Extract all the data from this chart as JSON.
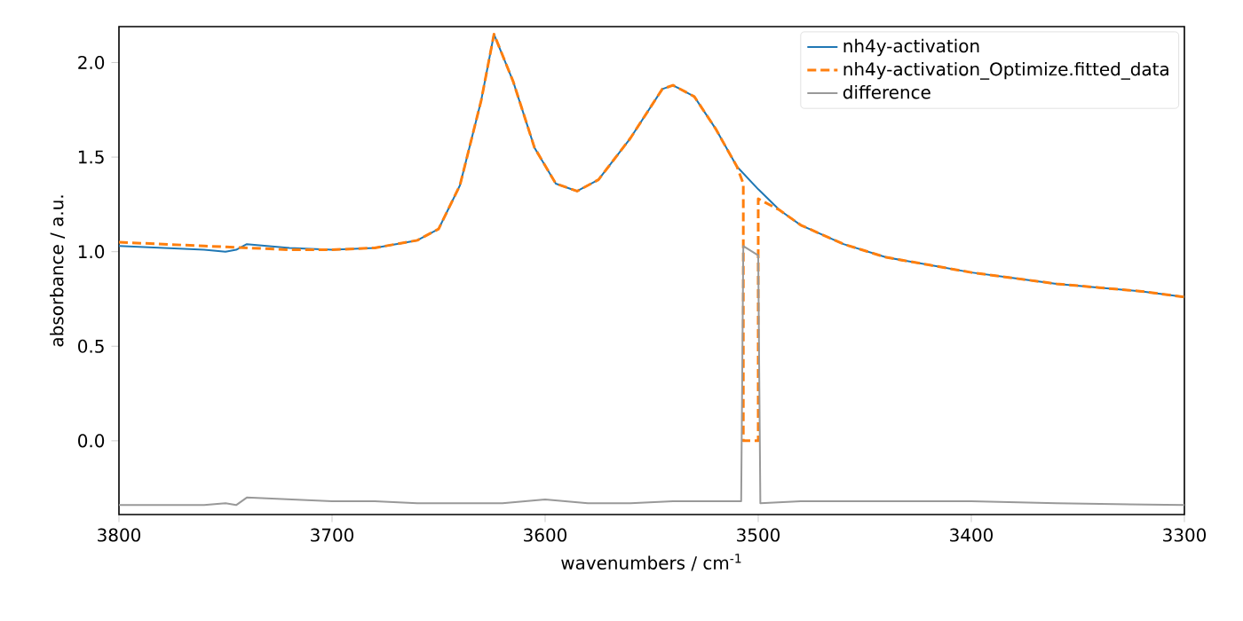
{
  "chart_data": {
    "type": "line",
    "xlabel": "wavenumbers / cm$^{-1}$",
    "ylabel": "absorbance / a.u.",
    "xlim": [
      3800,
      3300
    ],
    "ylim": [
      -0.39,
      2.19
    ],
    "xticks": [
      3800,
      3700,
      3600,
      3500,
      3400,
      3300
    ],
    "yticks": [
      {
        "value": 0,
        "label": "0.0"
      },
      {
        "value": 0.5,
        "label": "0.5"
      },
      {
        "value": 1,
        "label": "1.0"
      },
      {
        "value": 1.5,
        "label": "1.5"
      },
      {
        "value": 2,
        "label": "2.0"
      }
    ],
    "legend": "top right",
    "grid": false,
    "series": [
      {
        "name": "nh4y-activation",
        "color": "#1f77b4",
        "line_style": "solid",
        "x": [
          3800,
          3780,
          3760,
          3750,
          3745,
          3740,
          3720,
          3700,
          3680,
          3660,
          3650,
          3640,
          3630,
          3624,
          3615,
          3605,
          3595,
          3585,
          3575,
          3560,
          3545,
          3540,
          3530,
          3520,
          3510,
          3500,
          3490,
          3480,
          3460,
          3440,
          3420,
          3400,
          3380,
          3360,
          3340,
          3320,
          3300
        ],
        "values": [
          1.03,
          1.02,
          1.01,
          1.0,
          1.01,
          1.04,
          1.02,
          1.01,
          1.02,
          1.06,
          1.12,
          1.35,
          1.8,
          2.15,
          1.9,
          1.55,
          1.36,
          1.32,
          1.38,
          1.6,
          1.86,
          1.88,
          1.82,
          1.65,
          1.45,
          1.33,
          1.22,
          1.14,
          1.04,
          0.97,
          0.93,
          0.89,
          0.86,
          0.83,
          0.81,
          0.79,
          0.76
        ]
      },
      {
        "name": "nh4y-activation_Optimize.fitted_data",
        "color": "#ff7f0e",
        "line_style": "dashed",
        "x": [
          3800,
          3760,
          3720,
          3700,
          3680,
          3660,
          3650,
          3640,
          3630,
          3624,
          3615,
          3605,
          3595,
          3585,
          3575,
          3560,
          3545,
          3540,
          3530,
          3520,
          3510,
          3507,
          3507,
          3500,
          3500,
          3490,
          3480,
          3460,
          3440,
          3420,
          3400,
          3380,
          3360,
          3340,
          3320,
          3300
        ],
        "values": [
          1.05,
          1.03,
          1.01,
          1.01,
          1.02,
          1.06,
          1.12,
          1.35,
          1.8,
          2.15,
          1.9,
          1.55,
          1.36,
          1.32,
          1.38,
          1.6,
          1.86,
          1.88,
          1.82,
          1.65,
          1.45,
          1.36,
          0.0,
          0.0,
          1.28,
          1.22,
          1.14,
          1.04,
          0.97,
          0.93,
          0.89,
          0.86,
          0.83,
          0.81,
          0.79,
          0.76
        ]
      },
      {
        "name": "difference",
        "color": "#999999",
        "line_style": "solid",
        "x": [
          3800,
          3760,
          3750,
          3745,
          3740,
          3720,
          3700,
          3680,
          3660,
          3640,
          3620,
          3600,
          3580,
          3560,
          3540,
          3520,
          3508,
          3507,
          3500,
          3499,
          3480,
          3440,
          3400,
          3360,
          3300
        ],
        "values": [
          -0.34,
          -0.34,
          -0.33,
          -0.34,
          -0.3,
          -0.31,
          -0.32,
          -0.32,
          -0.33,
          -0.33,
          -0.33,
          -0.31,
          -0.33,
          -0.33,
          -0.32,
          -0.32,
          -0.32,
          1.03,
          0.98,
          -0.33,
          -0.32,
          -0.32,
          -0.32,
          -0.33,
          -0.34
        ]
      }
    ]
  }
}
